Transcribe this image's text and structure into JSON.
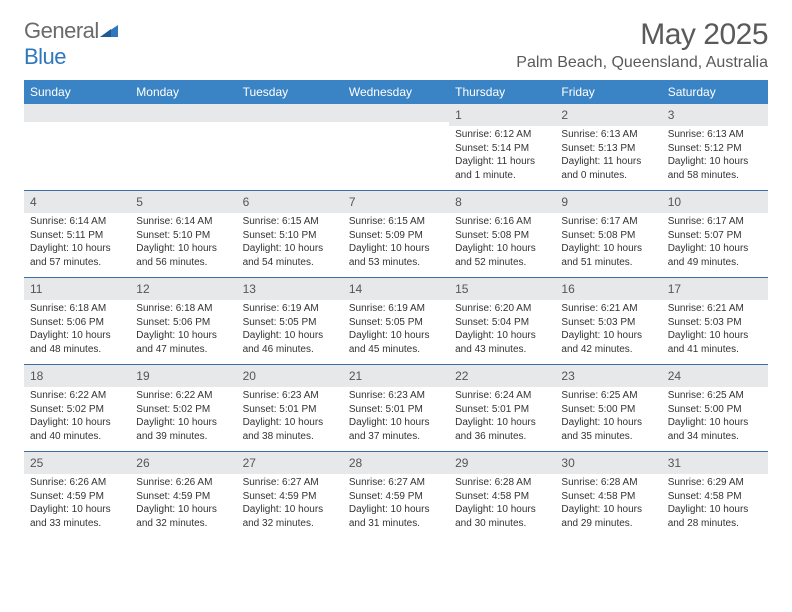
{
  "brand": {
    "part1": "General",
    "part2": "Blue"
  },
  "title": "May 2025",
  "location": "Palm Beach, Queensland, Australia",
  "colors": {
    "header_bg": "#3a84c5",
    "week_divider": "#3a6ea5",
    "daynum_bg": "#e7e8ea",
    "text": "#333333",
    "muted": "#5a5a5a",
    "brand_gray": "#6a6a6a",
    "brand_blue": "#2f78bd"
  },
  "weekdays": [
    "Sunday",
    "Monday",
    "Tuesday",
    "Wednesday",
    "Thursday",
    "Friday",
    "Saturday"
  ],
  "weeks": [
    [
      {
        "n": "",
        "sr": "",
        "ss": "",
        "dl": ""
      },
      {
        "n": "",
        "sr": "",
        "ss": "",
        "dl": ""
      },
      {
        "n": "",
        "sr": "",
        "ss": "",
        "dl": ""
      },
      {
        "n": "",
        "sr": "",
        "ss": "",
        "dl": ""
      },
      {
        "n": "1",
        "sr": "Sunrise: 6:12 AM",
        "ss": "Sunset: 5:14 PM",
        "dl": "Daylight: 11 hours and 1 minute."
      },
      {
        "n": "2",
        "sr": "Sunrise: 6:13 AM",
        "ss": "Sunset: 5:13 PM",
        "dl": "Daylight: 11 hours and 0 minutes."
      },
      {
        "n": "3",
        "sr": "Sunrise: 6:13 AM",
        "ss": "Sunset: 5:12 PM",
        "dl": "Daylight: 10 hours and 58 minutes."
      }
    ],
    [
      {
        "n": "4",
        "sr": "Sunrise: 6:14 AM",
        "ss": "Sunset: 5:11 PM",
        "dl": "Daylight: 10 hours and 57 minutes."
      },
      {
        "n": "5",
        "sr": "Sunrise: 6:14 AM",
        "ss": "Sunset: 5:10 PM",
        "dl": "Daylight: 10 hours and 56 minutes."
      },
      {
        "n": "6",
        "sr": "Sunrise: 6:15 AM",
        "ss": "Sunset: 5:10 PM",
        "dl": "Daylight: 10 hours and 54 minutes."
      },
      {
        "n": "7",
        "sr": "Sunrise: 6:15 AM",
        "ss": "Sunset: 5:09 PM",
        "dl": "Daylight: 10 hours and 53 minutes."
      },
      {
        "n": "8",
        "sr": "Sunrise: 6:16 AM",
        "ss": "Sunset: 5:08 PM",
        "dl": "Daylight: 10 hours and 52 minutes."
      },
      {
        "n": "9",
        "sr": "Sunrise: 6:17 AM",
        "ss": "Sunset: 5:08 PM",
        "dl": "Daylight: 10 hours and 51 minutes."
      },
      {
        "n": "10",
        "sr": "Sunrise: 6:17 AM",
        "ss": "Sunset: 5:07 PM",
        "dl": "Daylight: 10 hours and 49 minutes."
      }
    ],
    [
      {
        "n": "11",
        "sr": "Sunrise: 6:18 AM",
        "ss": "Sunset: 5:06 PM",
        "dl": "Daylight: 10 hours and 48 minutes."
      },
      {
        "n": "12",
        "sr": "Sunrise: 6:18 AM",
        "ss": "Sunset: 5:06 PM",
        "dl": "Daylight: 10 hours and 47 minutes."
      },
      {
        "n": "13",
        "sr": "Sunrise: 6:19 AM",
        "ss": "Sunset: 5:05 PM",
        "dl": "Daylight: 10 hours and 46 minutes."
      },
      {
        "n": "14",
        "sr": "Sunrise: 6:19 AM",
        "ss": "Sunset: 5:05 PM",
        "dl": "Daylight: 10 hours and 45 minutes."
      },
      {
        "n": "15",
        "sr": "Sunrise: 6:20 AM",
        "ss": "Sunset: 5:04 PM",
        "dl": "Daylight: 10 hours and 43 minutes."
      },
      {
        "n": "16",
        "sr": "Sunrise: 6:21 AM",
        "ss": "Sunset: 5:03 PM",
        "dl": "Daylight: 10 hours and 42 minutes."
      },
      {
        "n": "17",
        "sr": "Sunrise: 6:21 AM",
        "ss": "Sunset: 5:03 PM",
        "dl": "Daylight: 10 hours and 41 minutes."
      }
    ],
    [
      {
        "n": "18",
        "sr": "Sunrise: 6:22 AM",
        "ss": "Sunset: 5:02 PM",
        "dl": "Daylight: 10 hours and 40 minutes."
      },
      {
        "n": "19",
        "sr": "Sunrise: 6:22 AM",
        "ss": "Sunset: 5:02 PM",
        "dl": "Daylight: 10 hours and 39 minutes."
      },
      {
        "n": "20",
        "sr": "Sunrise: 6:23 AM",
        "ss": "Sunset: 5:01 PM",
        "dl": "Daylight: 10 hours and 38 minutes."
      },
      {
        "n": "21",
        "sr": "Sunrise: 6:23 AM",
        "ss": "Sunset: 5:01 PM",
        "dl": "Daylight: 10 hours and 37 minutes."
      },
      {
        "n": "22",
        "sr": "Sunrise: 6:24 AM",
        "ss": "Sunset: 5:01 PM",
        "dl": "Daylight: 10 hours and 36 minutes."
      },
      {
        "n": "23",
        "sr": "Sunrise: 6:25 AM",
        "ss": "Sunset: 5:00 PM",
        "dl": "Daylight: 10 hours and 35 minutes."
      },
      {
        "n": "24",
        "sr": "Sunrise: 6:25 AM",
        "ss": "Sunset: 5:00 PM",
        "dl": "Daylight: 10 hours and 34 minutes."
      }
    ],
    [
      {
        "n": "25",
        "sr": "Sunrise: 6:26 AM",
        "ss": "Sunset: 4:59 PM",
        "dl": "Daylight: 10 hours and 33 minutes."
      },
      {
        "n": "26",
        "sr": "Sunrise: 6:26 AM",
        "ss": "Sunset: 4:59 PM",
        "dl": "Daylight: 10 hours and 32 minutes."
      },
      {
        "n": "27",
        "sr": "Sunrise: 6:27 AM",
        "ss": "Sunset: 4:59 PM",
        "dl": "Daylight: 10 hours and 32 minutes."
      },
      {
        "n": "28",
        "sr": "Sunrise: 6:27 AM",
        "ss": "Sunset: 4:59 PM",
        "dl": "Daylight: 10 hours and 31 minutes."
      },
      {
        "n": "29",
        "sr": "Sunrise: 6:28 AM",
        "ss": "Sunset: 4:58 PM",
        "dl": "Daylight: 10 hours and 30 minutes."
      },
      {
        "n": "30",
        "sr": "Sunrise: 6:28 AM",
        "ss": "Sunset: 4:58 PM",
        "dl": "Daylight: 10 hours and 29 minutes."
      },
      {
        "n": "31",
        "sr": "Sunrise: 6:29 AM",
        "ss": "Sunset: 4:58 PM",
        "dl": "Daylight: 10 hours and 28 minutes."
      }
    ]
  ]
}
